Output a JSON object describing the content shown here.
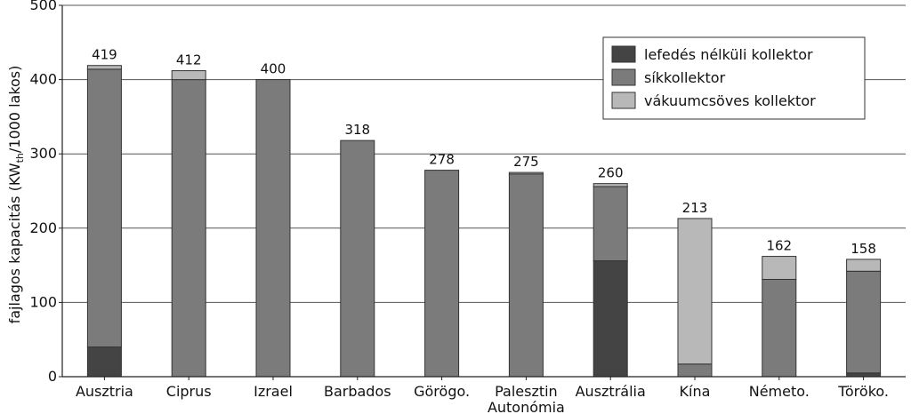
{
  "chart_data": {
    "type": "bar",
    "stacked": true,
    "ylabel": "fajlagos kapacitás (KW",
    "ylabel_sub": "th",
    "ylabel_tail": "/1000 lakos)",
    "ylim": [
      0,
      500
    ],
    "yticks": [
      0,
      100,
      200,
      300,
      400,
      500
    ],
    "grid": true,
    "legend_position": "top-right",
    "categories": [
      [
        "Ausztria"
      ],
      [
        "Ciprus"
      ],
      [
        "Izrael"
      ],
      [
        "Barbados"
      ],
      [
        "Görögo."
      ],
      [
        "Palesztin",
        "Autonómia"
      ],
      [
        "Ausztrália"
      ],
      [
        "Kína"
      ],
      [
        "Németo."
      ],
      [
        "Töröko."
      ]
    ],
    "series": [
      {
        "name": "lefedés nélküli kollektor",
        "color": "#444444",
        "values": [
          40,
          0,
          0,
          0,
          0,
          0,
          156,
          0,
          0,
          5
        ]
      },
      {
        "name": "síkkollektor",
        "color": "#7b7b7b",
        "values": [
          374,
          400,
          400,
          318,
          278,
          273,
          100,
          17,
          131,
          137
        ]
      },
      {
        "name": "vákuumcsöves kollektor",
        "color": "#b8b8b8",
        "values": [
          5,
          12,
          0,
          0,
          0,
          2,
          4,
          196,
          31,
          16
        ]
      }
    ],
    "totals": [
      "419",
      "412",
      "400",
      "318",
      "278",
      "275",
      "260",
      "213",
      "162",
      "158"
    ]
  }
}
